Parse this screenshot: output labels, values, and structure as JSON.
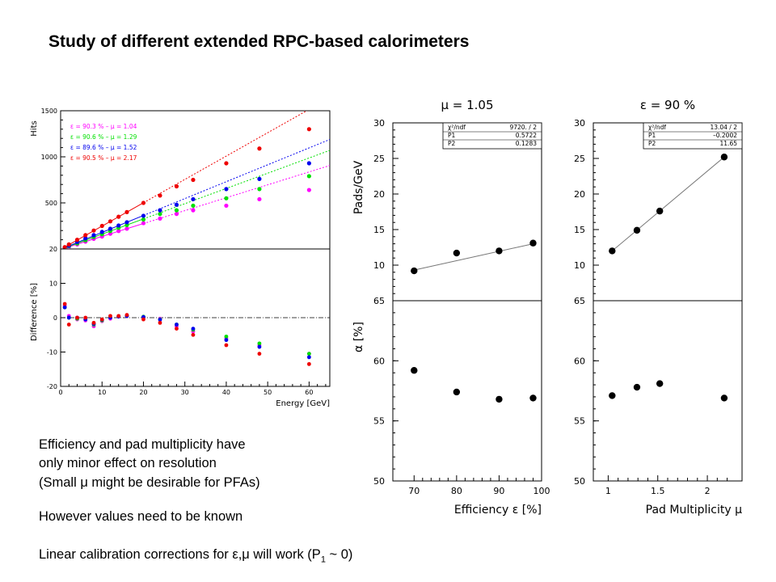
{
  "slide": {
    "title": "Study of different extended RPC-based calorimeters",
    "notes": [
      "Efficiency and pad multiplicity have",
      " only minor effect on resolution",
      " (Small μ might be desirable for PFAs)",
      "However values need to be known",
      "Linear calibration corrections for ε,μ will work (P",
      "1",
      " ~ 0)"
    ]
  },
  "chart_data": [
    {
      "type": "scatter",
      "id": "hits-vs-energy",
      "ylabel": "Hits",
      "xlim": [
        0,
        65
      ],
      "ylim": [
        0,
        1500
      ],
      "yticks": [
        500,
        1000,
        1500
      ],
      "legend_position": "top-left",
      "colors": [
        "#ff00ff",
        "#00e000",
        "#0000ee",
        "#ee0000"
      ],
      "x": [
        1,
        2,
        4,
        6,
        8,
        10,
        12,
        14,
        16,
        20,
        24,
        28,
        32,
        40,
        48,
        60
      ],
      "series": [
        {
          "name": "ε = 90.3 % – μ = 1.04",
          "values": [
            10,
            22,
            50,
            80,
            110,
            135,
            165,
            195,
            220,
            280,
            330,
            380,
            420,
            470,
            540,
            640
          ]
        },
        {
          "name": "ε = 90.6 % – μ = 1.29",
          "values": [
            12,
            28,
            60,
            95,
            130,
            160,
            195,
            230,
            260,
            320,
            380,
            420,
            470,
            550,
            650,
            790
          ]
        },
        {
          "name": "ε = 89.6 % – μ = 1.52",
          "values": [
            15,
            35,
            75,
            115,
            150,
            185,
            220,
            255,
            290,
            360,
            420,
            480,
            540,
            650,
            760,
            930
          ]
        },
        {
          "name": "ε = 90.5 % – μ = 2.17",
          "values": [
            20,
            50,
            100,
            150,
            200,
            250,
            300,
            350,
            400,
            500,
            580,
            680,
            750,
            930,
            1090,
            1300
          ]
        }
      ]
    },
    {
      "type": "scatter",
      "id": "difference-vs-energy",
      "xlabel": "Energy [GeV]",
      "ylabel": "Difference [%]",
      "xlim": [
        0,
        65
      ],
      "ylim": [
        -20,
        20
      ],
      "xticks": [
        0,
        10,
        20,
        30,
        40,
        50,
        60
      ],
      "yticks": [
        -20,
        -10,
        0,
        10,
        20
      ],
      "x": [
        1,
        2,
        4,
        6,
        8,
        10,
        12,
        14,
        16,
        20,
        24,
        28,
        32,
        40,
        48,
        60
      ],
      "series": [
        {
          "color": "#ff00ff",
          "values": [
            3.5,
            0.5,
            -0.5,
            -0.8,
            -2.5,
            -1,
            -0.3,
            0.3,
            0.5,
            0.2,
            -0.3,
            -2.5,
            -4,
            -6,
            -8,
            -10.5
          ]
        },
        {
          "color": "#00e000",
          "values": [
            3,
            0,
            -0.3,
            -0.5,
            -2,
            -0.8,
            0,
            0.4,
            0.6,
            0.3,
            -0.5,
            -2,
            -3.5,
            -5.5,
            -7.5,
            -10.5
          ]
        },
        {
          "color": "#0000ee",
          "values": [
            3,
            0,
            0,
            -0.5,
            -1.8,
            -0.6,
            0,
            0.3,
            0.5,
            0.2,
            -0.6,
            -2,
            -3.2,
            -6.5,
            -8.5,
            -11.5
          ]
        },
        {
          "color": "#ee0000",
          "values": [
            4,
            -2,
            0,
            0,
            -1.5,
            -0.5,
            0.5,
            0.5,
            0.8,
            -0.5,
            -1.5,
            -3.2,
            -5,
            -8,
            -10.5,
            -13.5
          ]
        }
      ]
    },
    {
      "type": "scatter",
      "id": "pads-vs-efficiency",
      "title": "μ = 1.05",
      "ylabel": "Pads/GeV",
      "xlim": [
        65,
        100
      ],
      "ylim": [
        5,
        30
      ],
      "yticks": [
        10,
        15,
        20,
        25,
        30
      ],
      "x": [
        70,
        80,
        90,
        98
      ],
      "y": [
        9.2,
        11.7,
        12,
        13.1
      ],
      "fit": [
        [
          70,
          9.3
        ],
        [
          98,
          13.0
        ]
      ],
      "stats": [
        [
          "χ²/ndf",
          "9720. / 2"
        ],
        [
          "P1",
          "0.5722"
        ],
        [
          "P2",
          "0.1283"
        ]
      ]
    },
    {
      "type": "scatter",
      "id": "alpha-vs-efficiency",
      "xlabel": "Efficiency ε [%]",
      "ylabel": "α [%]",
      "xlim": [
        65,
        100
      ],
      "ylim": [
        50,
        65
      ],
      "xticks": [
        70,
        80,
        90,
        100
      ],
      "yticks": [
        50,
        55,
        60,
        65
      ],
      "x": [
        70,
        80,
        90,
        98
      ],
      "y": [
        59.2,
        57.4,
        56.8,
        56.9
      ]
    },
    {
      "type": "scatter",
      "id": "pads-vs-multiplicity",
      "title": "ε = 90 %",
      "xlim": [
        0.85,
        2.35
      ],
      "ylim": [
        5,
        30
      ],
      "yticks": [
        10,
        15,
        20,
        25,
        30
      ],
      "x": [
        1.04,
        1.29,
        1.52,
        2.17
      ],
      "y": [
        12,
        14.9,
        17.6,
        25.2
      ],
      "fit": [
        [
          1.04,
          12.0
        ],
        [
          2.17,
          25.2
        ]
      ],
      "stats": [
        [
          "χ²/ndf",
          "13.04 / 2"
        ],
        [
          "P1",
          "–0.2002"
        ],
        [
          "P2",
          "11.65"
        ]
      ]
    },
    {
      "type": "scatter",
      "id": "alpha-vs-multiplicity",
      "xlabel": "Pad Multiplicity μ",
      "xlim": [
        0.85,
        2.35
      ],
      "ylim": [
        50,
        65
      ],
      "xticks": [
        1,
        1.5,
        2
      ],
      "yticks": [
        50,
        55,
        60,
        65
      ],
      "x": [
        1.04,
        1.29,
        1.52,
        2.17
      ],
      "y": [
        57.1,
        57.8,
        58.1,
        56.9
      ]
    }
  ]
}
